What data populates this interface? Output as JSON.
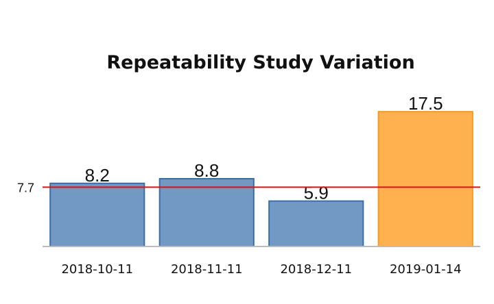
{
  "chart_data": {
    "type": "bar",
    "title": "Repeatability Study Variation",
    "xlabel": "",
    "ylabel": "",
    "categories": [
      "2018-10-11",
      "2018-11-11",
      "2018-12-11",
      "2019-01-14"
    ],
    "values": [
      8.2,
      8.8,
      5.9,
      17.5
    ],
    "value_labels": [
      "8.2",
      "8.8",
      "5.9",
      "17.5"
    ],
    "ylim": [
      0,
      20
    ],
    "grid": false,
    "legend": "none",
    "reference_line": {
      "value": 7.7,
      "label": "7.7",
      "color": "#dd1111"
    },
    "colors": {
      "normal_fill": "#7199c4",
      "normal_stroke": "#3a6fa6",
      "highlight_fill": "#ffb150",
      "highlight_stroke": "#f59a1e",
      "axis": "#bbbbbb"
    },
    "highlight_index": 3
  }
}
